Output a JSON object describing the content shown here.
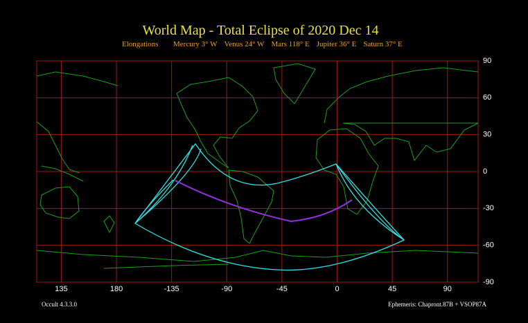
{
  "header": {
    "title": "World Map  -  Total  Eclipse  of  2020 Dec 14",
    "elongations": {
      "label": "Elongations",
      "items": [
        "Mercury 3° W",
        "Venus 24° W",
        "Mars 118° E",
        "Jupiter 36° E",
        "Saturn 37° E"
      ]
    }
  },
  "map": {
    "lon_ticks": [
      135,
      180,
      -135,
      -90,
      -45,
      0,
      45,
      90
    ],
    "lat_ticks": [
      90,
      60,
      30,
      0,
      -30,
      -60,
      -90
    ]
  },
  "footer": {
    "program": "Occult 4.3.3.0",
    "ephemeris": "Ephemeris: Chapront.87B + VSOP87A"
  }
}
